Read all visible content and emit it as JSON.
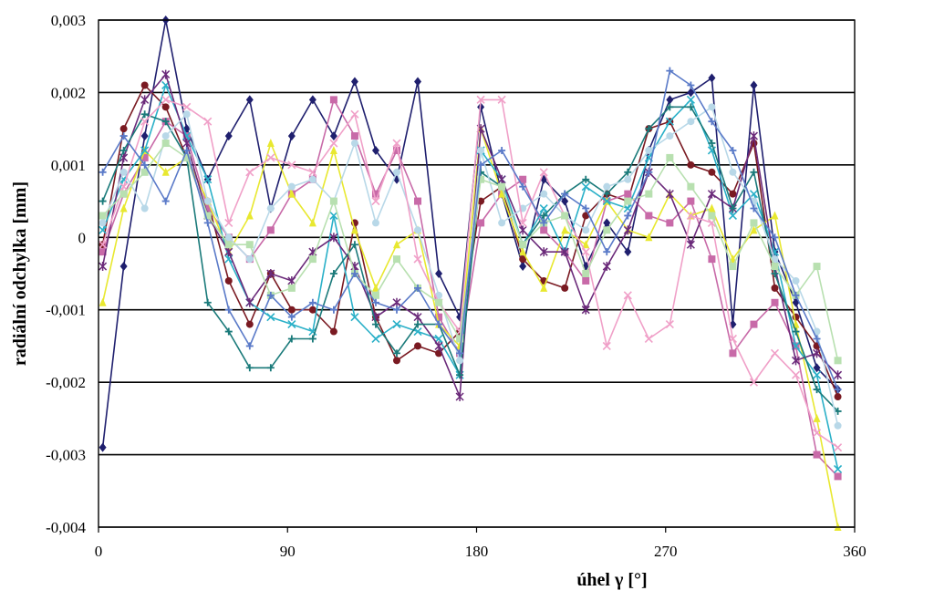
{
  "chart_data": {
    "type": "line",
    "xlabel": "úhel  γ [°]",
    "ylabel": "radiální odchylka  [mm]",
    "xlim": [
      0,
      360
    ],
    "ylim": [
      -0.004,
      0.003
    ],
    "x_ticks": [
      0,
      90,
      180,
      270,
      360
    ],
    "x_tick_labels": [
      "0",
      "90",
      "180",
      "270",
      "360"
    ],
    "y_ticks": [
      0.003,
      0.002,
      0.001,
      0,
      -0.001,
      -0.002,
      -0.003,
      -0.004
    ],
    "y_tick_labels": [
      "0,003",
      "0,002",
      "0,001",
      "0",
      "-0,001",
      "-0,002",
      "-0,003",
      "-0,004"
    ],
    "grid": "horizontal",
    "x": [
      2,
      12,
      22,
      32,
      42,
      52,
      62,
      72,
      82,
      92,
      102,
      112,
      122,
      132,
      142,
      152,
      162,
      172,
      182,
      192,
      202,
      212,
      222,
      232,
      242,
      252,
      262,
      272,
      282,
      292,
      302,
      312,
      322,
      332,
      342,
      352
    ],
    "series": [
      {
        "color": "#1f1f6e",
        "marker": "diamond",
        "values": [
          -0.0029,
          -0.0004,
          0.0014,
          0.003,
          0.0015,
          0.0008,
          0.0014,
          0.0019,
          0.0004,
          0.0014,
          0.0019,
          0.0014,
          0.00215,
          0.0012,
          0.0008,
          0.00215,
          -0.0005,
          -0.0011,
          0.0018,
          0.0006,
          -0.0004,
          0.0008,
          0.0005,
          -0.0004,
          0.0002,
          -0.0002,
          0.0012,
          0.0019,
          0.002,
          0.0022,
          -0.0012,
          0.0021,
          -0.0002,
          -0.0009,
          -0.0018,
          -0.0021
        ]
      },
      {
        "color": "#7a1a22",
        "marker": "circle",
        "values": [
          -0.0001,
          0.0015,
          0.0021,
          0.0018,
          0.0011,
          0.0005,
          -0.0006,
          -0.0012,
          -0.0005,
          -0.001,
          -0.001,
          -0.0013,
          0.0002,
          -0.0011,
          -0.0017,
          -0.0015,
          -0.0016,
          -0.0013,
          0.0005,
          0.0007,
          -0.0003,
          -0.0006,
          -0.0007,
          0.0003,
          0.0006,
          0.0005,
          0.0015,
          0.0016,
          0.001,
          0.0009,
          0.0006,
          0.0013,
          -0.0007,
          -0.0011,
          -0.0015,
          -0.0022
        ]
      },
      {
        "color": "#c86aa8",
        "marker": "square",
        "values": [
          -0.0002,
          0.0006,
          0.0011,
          0.0016,
          0.0014,
          0.0004,
          0.0,
          -0.0003,
          0.0001,
          0.0006,
          0.0008,
          0.0019,
          0.0014,
          0.0006,
          0.0012,
          0.0005,
          -0.0011,
          -0.0016,
          0.0002,
          0.0006,
          0.0008,
          0.0001,
          -0.0002,
          -0.0006,
          0.0005,
          0.0006,
          0.0003,
          0.0002,
          0.0005,
          -0.0003,
          -0.0016,
          -0.0012,
          -0.0009,
          -0.0015,
          -0.003,
          -0.0033
        ]
      },
      {
        "color": "#e8e830",
        "marker": "triangle",
        "values": [
          -0.0009,
          0.0004,
          0.0012,
          0.0009,
          0.0011,
          0.0005,
          -0.0002,
          0.0003,
          0.0013,
          0.0006,
          0.0002,
          0.0012,
          0.0001,
          -0.0007,
          -0.0001,
          0.0001,
          -0.0012,
          -0.0015,
          0.0015,
          0.0006,
          -0.0002,
          -0.0007,
          0.0001,
          -0.0001,
          0.0005,
          0.0001,
          0.0,
          0.0006,
          0.0003,
          0.0004,
          -0.0003,
          0.0001,
          0.0003,
          -0.0012,
          -0.0025,
          -0.004
        ]
      },
      {
        "color": "#2ab0c8",
        "marker": "x",
        "values": [
          0.0001,
          0.0008,
          0.0012,
          0.0021,
          0.0014,
          0.0008,
          -0.0003,
          -0.0009,
          -0.0011,
          -0.0012,
          -0.0013,
          0.0003,
          -0.0011,
          -0.0014,
          -0.0012,
          -0.0013,
          -0.0014,
          -0.0019,
          0.0012,
          0.0008,
          -0.0001,
          0.0004,
          -0.0002,
          0.0007,
          0.0005,
          0.0004,
          0.0011,
          0.0016,
          0.0019,
          0.0012,
          0.0003,
          0.0006,
          -0.0002,
          -0.0015,
          -0.0019,
          -0.0032
        ]
      },
      {
        "color": "#6b2a7a",
        "marker": "star",
        "values": [
          -0.0004,
          0.0011,
          0.0019,
          0.00225,
          0.0013,
          0.0003,
          -0.0002,
          -0.0009,
          -0.0005,
          -0.0006,
          -0.0002,
          0.0,
          -0.0004,
          -0.0011,
          -0.0009,
          -0.0011,
          -0.0015,
          -0.0022,
          0.0015,
          0.0008,
          0.0001,
          -0.0002,
          -0.0002,
          -0.001,
          -0.0004,
          0.0001,
          0.0009,
          0.0006,
          -0.0001,
          0.0006,
          0.0004,
          0.0014,
          -0.0004,
          -0.0017,
          -0.0016,
          -0.0019
        ]
      },
      {
        "color": "#1a7a7a",
        "marker": "plus",
        "values": [
          0.0005,
          0.0012,
          0.0017,
          0.0016,
          0.0011,
          -0.0009,
          -0.0013,
          -0.0018,
          -0.0018,
          -0.0014,
          -0.0014,
          -0.0005,
          -0.0001,
          -0.0012,
          -0.0016,
          -0.0012,
          -0.0012,
          -0.0019,
          0.0009,
          0.0007,
          -0.0001,
          0.0003,
          0.0006,
          0.0008,
          0.0006,
          0.0009,
          0.0015,
          0.0018,
          0.0018,
          0.0013,
          0.0004,
          0.0009,
          -0.0005,
          -0.0013,
          -0.0021,
          -0.0024
        ]
      },
      {
        "color": "#b8d8e8",
        "marker": "circle",
        "values": [
          0.0002,
          0.0009,
          0.0004,
          0.0014,
          0.0017,
          0.0005,
          0.0,
          -0.0003,
          0.0004,
          0.0007,
          0.0008,
          0.0005,
          0.0013,
          0.0002,
          0.0009,
          0.0001,
          -0.0008,
          -0.0017,
          0.0012,
          0.0002,
          0.0004,
          0.0006,
          0.0003,
          0.0001,
          0.0007,
          0.0008,
          0.0012,
          0.0014,
          0.0016,
          0.0018,
          0.0009,
          0.0005,
          -0.0003,
          -0.0006,
          -0.0013,
          -0.0026
        ]
      },
      {
        "color": "#f0a0c8",
        "marker": "x",
        "values": [
          -0.0001,
          0.0007,
          0.0016,
          0.0019,
          0.0018,
          0.0016,
          0.0002,
          0.0009,
          0.0011,
          0.001,
          0.0009,
          0.0013,
          0.0017,
          0.0005,
          0.0013,
          -0.0003,
          -0.0009,
          -0.0013,
          0.0019,
          0.0019,
          0.0002,
          0.0009,
          0.0003,
          -0.0002,
          -0.0015,
          -0.0008,
          -0.0014,
          -0.0012,
          0.0003,
          0.0002,
          -0.0014,
          -0.002,
          -0.0016,
          -0.0019,
          -0.0027,
          -0.0029
        ]
      },
      {
        "color": "#b8e0b0",
        "marker": "square",
        "values": [
          0.0003,
          0.0006,
          0.0009,
          0.0013,
          0.0011,
          0.0003,
          -0.0001,
          -0.0001,
          -0.0008,
          -0.0007,
          -0.0003,
          0.0005,
          -0.0005,
          -0.0008,
          -0.0003,
          -0.0007,
          -0.0009,
          -0.0014,
          0.0008,
          0.0007,
          -0.0001,
          0.0002,
          0.0003,
          -0.0005,
          0.0001,
          0.0005,
          0.0006,
          0.0011,
          0.0007,
          0.0003,
          -0.0004,
          0.0002,
          -0.0004,
          -0.0008,
          -0.0004,
          -0.0017
        ]
      },
      {
        "color": "#5a7ac8",
        "marker": "plus",
        "values": [
          0.0009,
          0.0014,
          0.001,
          0.0005,
          0.0012,
          0.0002,
          -0.001,
          -0.0015,
          -0.0008,
          -0.0011,
          -0.0009,
          -0.001,
          -0.0005,
          -0.0009,
          -0.001,
          -0.0007,
          -0.0012,
          -0.0016,
          0.001,
          0.0012,
          0.0007,
          0.0002,
          0.0006,
          0.0004,
          -0.0002,
          0.0003,
          0.0009,
          0.0023,
          0.0021,
          0.0016,
          0.0012,
          0.0004,
          0.0,
          -0.0008,
          -0.0014,
          -0.0021
        ]
      }
    ]
  }
}
